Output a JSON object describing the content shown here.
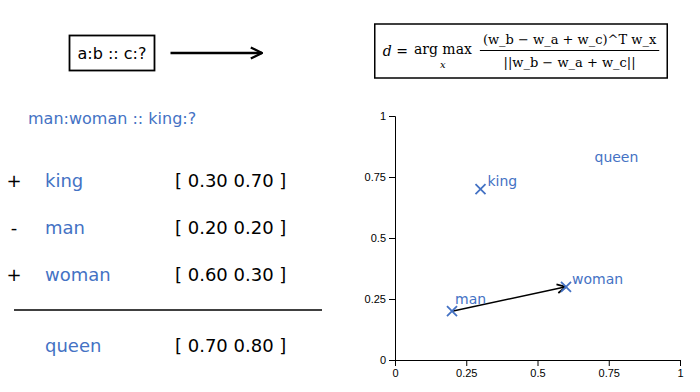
{
  "chart_data": {
    "type": "scatter",
    "x": [
      0.3,
      0.2,
      0.6
    ],
    "values": [
      0.7,
      0.2,
      0.3
    ],
    "point_labels": [
      "king",
      "man",
      "woman"
    ],
    "color": "#4472C4",
    "marker": "x",
    "xlim": [
      0,
      1
    ],
    "ylim": [
      0,
      1
    ],
    "xticks": [
      0,
      0.25,
      0.5,
      0.75,
      1
    ],
    "yticks": [
      0,
      0.25,
      0.5,
      0.75,
      1
    ],
    "annotations": [
      {
        "text": "queen",
        "x": 0.7,
        "y": 0.8
      }
    ],
    "arrow": {
      "x": [
        0.2,
        0.6
      ],
      "y": [
        0.2,
        0.3
      ]
    },
    "formula": {
      "lhs": "d =",
      "operator": "arg max",
      "operator_sub": "x",
      "numerator": "(w_b − w_a + w_c)^T w_x",
      "denominator": "||w_b − w_a + w_c||"
    },
    "panel": {
      "analogy": "a:b :: c:?",
      "example": "man:woman :: king:?",
      "rows": [
        {
          "sign": "+",
          "word": "king",
          "vector": "[ 0.30 0.70 ]"
        },
        {
          "sign": "-",
          "word": "man",
          "vector": "[ 0.20 0.20 ]"
        },
        {
          "sign": "+",
          "word": "woman",
          "vector": "[ 0.60 0.30 ]"
        },
        {
          "word": "queen",
          "vector": "[ 0.70 0.80 ]"
        }
      ]
    }
  }
}
